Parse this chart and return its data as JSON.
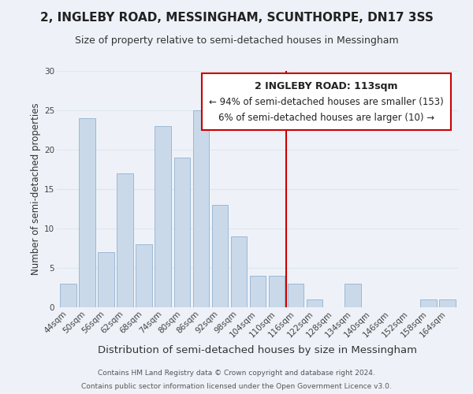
{
  "title": "2, INGLEBY ROAD, MESSINGHAM, SCUNTHORPE, DN17 3SS",
  "subtitle": "Size of property relative to semi-detached houses in Messingham",
  "xlabel": "Distribution of semi-detached houses by size in Messingham",
  "ylabel": "Number of semi-detached properties",
  "footer_lines": [
    "Contains HM Land Registry data © Crown copyright and database right 2024.",
    "Contains public sector information licensed under the Open Government Licence v3.0."
  ],
  "bar_labels": [
    "44sqm",
    "50sqm",
    "56sqm",
    "62sqm",
    "68sqm",
    "74sqm",
    "80sqm",
    "86sqm",
    "92sqm",
    "98sqm",
    "104sqm",
    "110sqm",
    "116sqm",
    "122sqm",
    "128sqm",
    "134sqm",
    "140sqm",
    "146sqm",
    "152sqm",
    "158sqm",
    "164sqm"
  ],
  "bar_values": [
    3,
    24,
    7,
    17,
    8,
    23,
    19,
    25,
    13,
    9,
    4,
    4,
    3,
    1,
    0,
    3,
    0,
    0,
    0,
    1,
    1
  ],
  "bar_color": "#c9d9ea",
  "bar_edge_color": "#9db8d4",
  "grid_color": "#dce6f0",
  "background_color": "#eef2f8",
  "annotation_box_edge": "#cc0000",
  "annotation_line_color": "#cc0000",
  "annotation_title": "2 INGLEBY ROAD: 113sqm",
  "annotation_smaller_pct": "94%",
  "annotation_smaller_count": 153,
  "annotation_larger_pct": "6%",
  "annotation_larger_count": 10,
  "ylim": [
    0,
    30
  ],
  "yticks": [
    0,
    5,
    10,
    15,
    20,
    25,
    30
  ],
  "title_fontsize": 11,
  "subtitle_fontsize": 9,
  "xlabel_fontsize": 9.5,
  "ylabel_fontsize": 8.5,
  "tick_fontsize": 7.5,
  "annotation_fontsize": 8.5,
  "footer_fontsize": 6.5
}
